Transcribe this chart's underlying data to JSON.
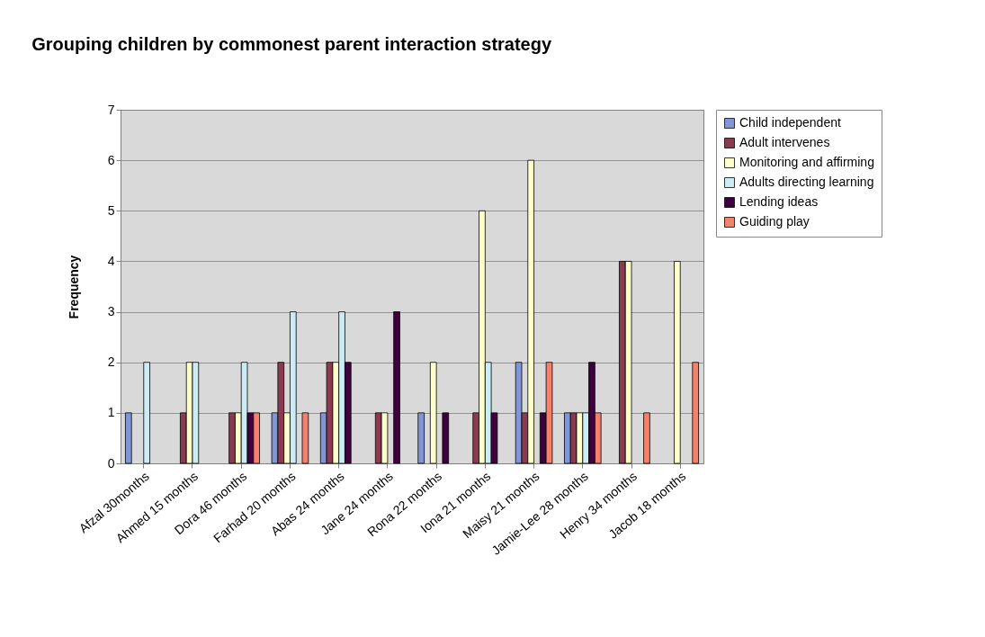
{
  "chart_data": {
    "type": "bar",
    "title": "Grouping children by commonest parent interaction strategy",
    "ylabel": "Frequency",
    "categories": [
      "Afzal 30months",
      "Ahmed 15 months",
      "Dora 46 months",
      "Farhad 20 months",
      "Abas 24 months",
      "Jane 24 months",
      "Rona 22 months",
      "Iona 21 months",
      "Maisy 21 months",
      "Jamie-Lee 28 months",
      "Henry 34 months",
      "Jacob 18 months"
    ],
    "series": [
      {
        "name": "Child independent",
        "color": "#8096d6",
        "values": [
          1,
          0,
          0,
          1,
          1,
          0,
          1,
          0,
          2,
          1,
          0,
          0
        ]
      },
      {
        "name": "Adult intervenes",
        "color": "#8b3a4f",
        "values": [
          0,
          1,
          1,
          2,
          2,
          1,
          0,
          1,
          1,
          1,
          4,
          0
        ]
      },
      {
        "name": "Monitoring and affirming",
        "color": "#ffffcc",
        "values": [
          0,
          2,
          1,
          1,
          2,
          1,
          2,
          5,
          6,
          1,
          4,
          4
        ]
      },
      {
        "name": "Adults directing learning",
        "color": "#ccecf5",
        "values": [
          2,
          2,
          2,
          3,
          3,
          0,
          0,
          2,
          0,
          1,
          0,
          0
        ]
      },
      {
        "name": "Lending ideas",
        "color": "#3f0040",
        "values": [
          0,
          0,
          1,
          0,
          2,
          3,
          1,
          1,
          1,
          2,
          0,
          0
        ]
      },
      {
        "name": "Guiding play",
        "color": "#f5806c",
        "values": [
          0,
          0,
          1,
          1,
          0,
          0,
          0,
          0,
          2,
          1,
          1,
          2
        ]
      }
    ],
    "ylim": [
      0,
      7
    ],
    "yticks": [
      0,
      1,
      2,
      3,
      4,
      5,
      6,
      7
    ],
    "grid": "y",
    "legend": "right"
  }
}
